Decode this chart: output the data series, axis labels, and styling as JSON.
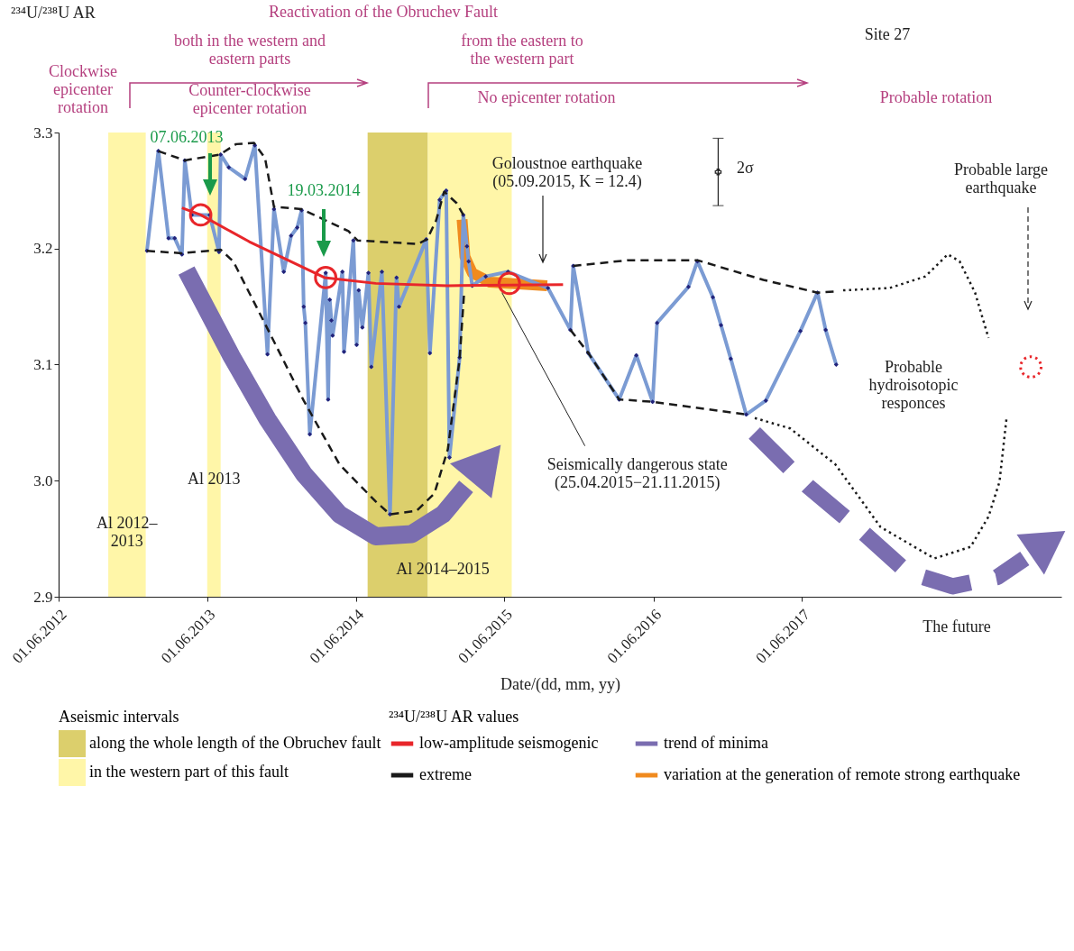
{
  "chart_data": {
    "type": "line",
    "xlabel": "Date/(dd, mm, yy)",
    "legend": "bottom",
    "legend_title": "²³⁴U/²³⁸U AR values",
    "grid": false,
    "xlim": [
      "2012-06-01",
      "2019-02-28"
    ],
    "ylim": [
      2.9,
      3.3
    ],
    "xticks": [
      {
        "value": "2012-06-01",
        "label": "01.06.2012"
      },
      {
        "value": "2013-06-01",
        "label": "01.06.2013"
      },
      {
        "value": "2014-06-01",
        "label": "01.06.2014"
      },
      {
        "value": "2015-06-01",
        "label": "01.06.2015"
      },
      {
        "value": "2016-06-01",
        "label": "01.06.2016"
      },
      {
        "value": "2017-06-01",
        "label": "01.06.2017"
      }
    ],
    "yticks": [
      2.9,
      {
        "value": 3.0,
        "label": "3.0"
      },
      3.1,
      3.2,
      3.3
    ],
    "bands": [
      {
        "axis": "x",
        "from": "2012-10-01",
        "to": "2013-01-01",
        "label": "Al 2012–\n2013",
        "color": "#fff6a8"
      },
      {
        "axis": "x",
        "from": "2013-06-01",
        "to": "2013-07-04",
        "label": "Al 2013",
        "color": "#fff6a8"
      },
      {
        "axis": "x",
        "from": "2014-06-30",
        "to": "2014-11-25",
        "label": "along the whole length of the Obruchev fault",
        "color": "#dccf6c"
      },
      {
        "axis": "x",
        "from": "2014-11-25",
        "to": "2015-06-19",
        "label": "Al 2014–2015",
        "color": "#fff6a8"
      }
    ],
    "annotations": [
      "Reactivation of the Obruchev Fault",
      "both in the western and\neastern parts",
      "from the eastern to\nthe western part",
      "Clockwise\nepicenter\nrotation",
      "Counter-clockwise\nepicenter rotation",
      "No epicenter rotation",
      "Probable rotation",
      "Site 27",
      "07.06.2013",
      "19.03.2014",
      "Goloustnoe earthquake\n(05.09.2015, K = 12.4)",
      "2σ",
      "Probable large\nearthquake",
      "Probable\nhydroisotopic\nresponces",
      {
        "text": "Seismically dangerous state\n(25.04.2015−21.11.2015)",
        "x": "2015-05-26",
        "y": 3.162
      },
      "The future",
      "Aseismic intervals",
      "in the western part of this fault",
      "²³⁴U/²³⁸U AR"
    ],
    "series": [
      {
        "color": "#7b9bd3",
        "marker": "diamond",
        "x": [
          "2013-01-04",
          "2013-02-01",
          "2013-02-26",
          "2013-03-13",
          "2013-03-31",
          "2013-04-07",
          "2013-04-24",
          "2013-06-07",
          "2013-06-30",
          "2013-07-04",
          "2013-07-24",
          "2013-09-02",
          "2013-09-26",
          "2013-10-27",
          "2013-11-12",
          "2013-12-06",
          "2013-12-24",
          "2014-01-08",
          "2014-01-19",
          "2014-01-24",
          "2014-01-28",
          "2014-02-08",
          "2014-03-19",
          "2014-03-25",
          "2014-03-29",
          "2014-04-02",
          "2014-04-05",
          "2014-04-29",
          "2014-05-03",
          "2014-05-26",
          "2014-06-03",
          "2014-06-08",
          "2014-06-17",
          "2014-07-02",
          "2014-07-09",
          "2014-08-04",
          "2014-08-24",
          "2014-09-09",
          "2014-09-15",
          "2014-11-21",
          "2014-11-30",
          "2014-12-24",
          "2015-01-09",
          "2015-01-17",
          "2015-02-11",
          "2015-02-20",
          "2015-03-01",
          "2015-03-05",
          "2015-03-14",
          "2015-04-16",
          "2015-06-10",
          "2015-09-16",
          "2015-11-10",
          "2015-11-17",
          "2015-12-24",
          "2016-03-09",
          "2016-04-20",
          "2016-05-30",
          "2016-06-10",
          "2016-08-26",
          "2016-09-17",
          "2016-10-25",
          "2016-11-14",
          "2016-12-08",
          "2017-01-15",
          "2017-03-04",
          "2017-05-28",
          "2017-07-09",
          "2017-07-29",
          "2017-08-24"
        ],
        "values": [
          3.198,
          3.284,
          3.209,
          3.209,
          3.195,
          3.276,
          3.229,
          3.229,
          3.197,
          3.281,
          3.27,
          3.26,
          3.289,
          3.109,
          3.234,
          3.18,
          3.211,
          3.218,
          3.233,
          3.15,
          3.136,
          3.04,
          3.179,
          3.07,
          3.156,
          3.138,
          3.125,
          3.18,
          3.111,
          3.207,
          3.117,
          3.164,
          3.132,
          3.179,
          3.098,
          3.18,
          2.971,
          3.175,
          3.15,
          3.208,
          3.11,
          3.242,
          3.25,
          3.02,
          3.106,
          3.229,
          3.202,
          3.189,
          3.168,
          3.176,
          3.18,
          3.166,
          3.13,
          3.185,
          3.11,
          3.07,
          3.108,
          3.068,
          3.136,
          3.167,
          3.189,
          3.158,
          3.134,
          3.105,
          3.057,
          3.069,
          3.129,
          3.162,
          3.13,
          3.1
        ]
      },
      {
        "color": "#e8262a",
        "x": [
          "2013-03-31",
          "2013-05-16",
          "2013-09-12",
          "2014-03-16",
          "2014-07-20",
          "2015-01-13",
          "2015-10-23"
        ],
        "values": [
          3.235,
          3.229,
          3.206,
          3.175,
          3.17,
          3.168,
          3.169
        ]
      },
      {
        "type": "scatter",
        "name": "low-amplitude seismogenic",
        "color": "#e8262a",
        "marker": "circle",
        "x": [
          "2013-05-16",
          "2014-03-19",
          "2015-06-13"
        ],
        "values": [
          3.229,
          3.175,
          3.17
        ]
      },
      {
        "type": "scatter",
        "color": "#e8262a",
        "marker": "circle",
        "line_style": "dotted",
        "x": [
          "2018-12-15"
        ],
        "values": [
          3.098
        ]
      },
      {
        "name": "extreme",
        "color": "#1a1a1a",
        "line_style": "dashed",
        "x": [
          "2013-02-01",
          "2013-04-07",
          "2013-07-02",
          "2013-08-11",
          "2013-09-24",
          "2013-10-21",
          "2013-11-12",
          "2014-01-19",
          "2014-05-14",
          "2014-06-05",
          "2014-11-01",
          "2014-11-23",
          "2014-12-15",
          "2015-01-04",
          "2015-02-04",
          "2015-02-20"
        ],
        "values": [
          3.284,
          3.276,
          3.281,
          3.29,
          3.291,
          3.278,
          3.236,
          3.234,
          3.215,
          3.207,
          3.204,
          3.208,
          3.224,
          3.249,
          3.239,
          3.229
        ]
      },
      {
        "color": "#1a1a1a",
        "line_style": "dashed",
        "x": [
          "2013-01-04",
          "2013-03-31",
          "2013-07-04",
          "2013-08-04",
          "2013-10-27",
          "2014-01-24",
          "2014-04-22",
          "2014-07-20",
          "2014-08-24",
          "2014-10-28",
          "2014-12-11",
          "2015-01-13",
          "2015-02-11",
          "2015-02-22"
        ],
        "values": [
          3.198,
          3.196,
          3.199,
          3.189,
          3.131,
          3.069,
          3.014,
          2.982,
          2.971,
          2.974,
          2.989,
          3.027,
          3.105,
          3.162
        ]
      },
      {
        "color": "#1a1a1a",
        "line_style": "dashed",
        "x": [
          "2015-11-17",
          "2016-03-31",
          "2016-09-17",
          "2017-02-26",
          "2017-07-09",
          "2017-08-22"
        ],
        "values": [
          3.185,
          3.19,
          3.19,
          3.173,
          3.162,
          3.163
        ]
      },
      {
        "color": "#1a1a1a",
        "line_style": "dashed",
        "x": [
          "2015-11-10",
          "2015-12-24",
          "2016-03-09",
          "2016-05-30",
          "2017-01-15"
        ],
        "values": [
          3.13,
          3.11,
          3.07,
          3.068,
          3.057
        ]
      },
      {
        "color": "#1a1a1a",
        "line_style": "dotted",
        "x": [
          "2017-09-10",
          "2018-01-02",
          "2018-03-31",
          "2018-05-25",
          "2018-06-23",
          "2018-07-31",
          "2018-09-02"
        ],
        "values": [
          3.164,
          3.166,
          3.176,
          3.195,
          3.189,
          3.162,
          3.123
        ]
      },
      {
        "color": "#1a1a1a",
        "line_style": "dotted",
        "x": [
          "2017-02-05",
          "2017-05-03",
          "2017-08-22",
          "2017-12-11",
          "2018-04-22",
          "2018-07-20",
          "2018-09-02",
          "2018-09-29",
          "2018-10-16"
        ],
        "values": [
          3.054,
          3.045,
          3.014,
          2.96,
          2.933,
          2.943,
          2.969,
          2.999,
          3.053
        ]
      },
      {
        "name": "trend of minima",
        "color": "#7a6db0",
        "x": [
          "2013-04-11",
          "2013-07-31",
          "2013-10-27",
          "2014-01-24",
          "2014-04-22",
          "2014-07-20",
          "2014-10-16",
          "2015-01-01",
          "2015-02-27"
        ],
        "values": [
          3.181,
          3.107,
          3.053,
          3.006,
          2.971,
          2.952,
          2.954,
          2.971,
          2.995
        ]
      },
      {
        "color": "#7a6db0",
        "line_style": "dashed",
        "x": [
          "2017-02-04",
          "2017-06-16",
          "2017-10-27",
          "2018-02-15",
          "2018-06-06",
          "2018-09-24",
          "2018-11-30"
        ],
        "values": [
          3.041,
          2.995,
          2.956,
          2.921,
          2.909,
          2.917,
          2.933
        ]
      },
      {
        "name": "variation at the generation of remote strong earthquake",
        "color": "#f08a1e",
        "x": [
          "2015-02-17",
          "2015-02-24",
          "2015-03-14",
          "2015-04-27",
          "2015-09-14"
        ],
        "values": [
          3.225,
          3.193,
          3.179,
          3.171,
          3.168
        ]
      },
      {
        "type": "scatter",
        "color": "#222222",
        "marker": "cross",
        "x": [
          "2016-11-07"
        ],
        "values": [
          3.266
        ],
        "errors": [
          0.029
        ]
      }
    ]
  }
}
